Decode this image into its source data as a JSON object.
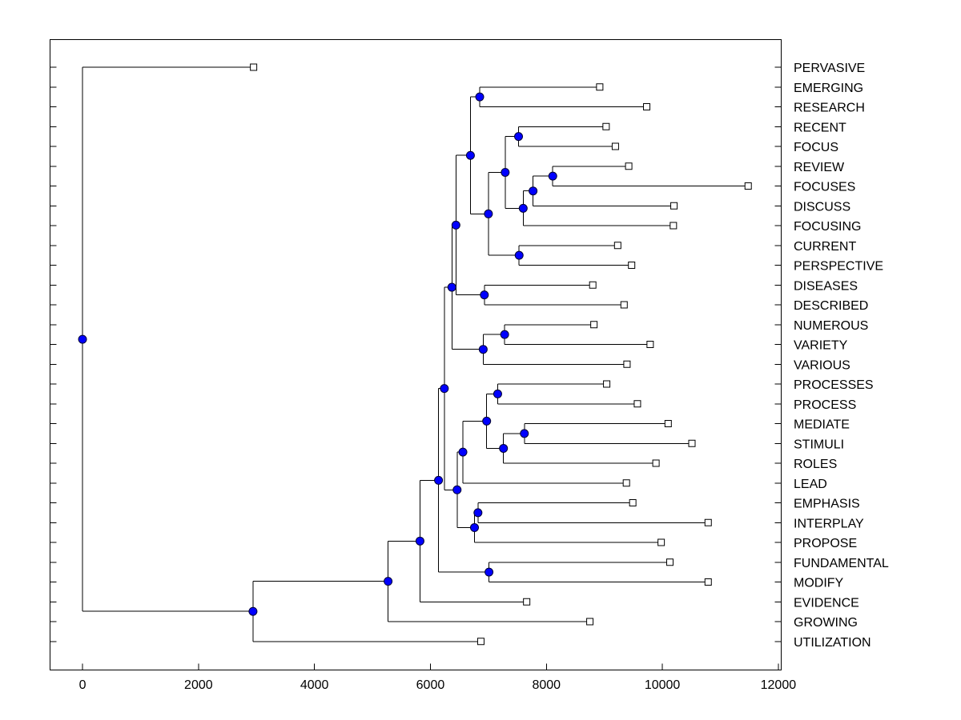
{
  "chart_data": {
    "type": "dendrogram",
    "title": "",
    "xlabel": "",
    "ylabel": "",
    "xlim": [
      -560,
      12050
    ],
    "x_ticks": [
      0,
      2000,
      4000,
      6000,
      8000,
      10000,
      12000
    ],
    "x_tick_labels": [
      "0",
      "2000",
      "4000",
      "6000",
      "8000",
      "10000",
      "12000"
    ],
    "grid": false,
    "colors": {
      "node": "#0000ff",
      "leaf": "#ffffff",
      "line": "#000000"
    },
    "leaves": [
      {
        "label": "PERVASIVE",
        "value": 2950
      },
      {
        "label": "EMERGING",
        "value": 8920
      },
      {
        "label": "RESEARCH",
        "value": 9730
      },
      {
        "label": "RECENT",
        "value": 9030
      },
      {
        "label": "FOCUS",
        "value": 9190
      },
      {
        "label": "REVIEW",
        "value": 9420
      },
      {
        "label": "FOCUSES",
        "value": 11480
      },
      {
        "label": "DISCUSS",
        "value": 10200
      },
      {
        "label": "FOCUSING",
        "value": 10190
      },
      {
        "label": "CURRENT",
        "value": 9230
      },
      {
        "label": "PERSPECTIVE",
        "value": 9470
      },
      {
        "label": "DISEASES",
        "value": 8800
      },
      {
        "label": "DESCRIBED",
        "value": 9340
      },
      {
        "label": "NUMEROUS",
        "value": 8820
      },
      {
        "label": "VARIETY",
        "value": 9790
      },
      {
        "label": "VARIOUS",
        "value": 9390
      },
      {
        "label": "PROCESSES",
        "value": 9040
      },
      {
        "label": "PROCESS",
        "value": 9570
      },
      {
        "label": "MEDIATE",
        "value": 10100
      },
      {
        "label": "STIMULI",
        "value": 10510
      },
      {
        "label": "ROLES",
        "value": 9890
      },
      {
        "label": "LEAD",
        "value": 9380
      },
      {
        "label": "EMPHASIS",
        "value": 9490
      },
      {
        "label": "INTERPLAY",
        "value": 10790
      },
      {
        "label": "PROPOSE",
        "value": 9980
      },
      {
        "label": "FUNDAMENTAL",
        "value": 10130
      },
      {
        "label": "MODIFY",
        "value": 10790
      },
      {
        "label": "EVIDENCE",
        "value": 7660
      },
      {
        "label": "GROWING",
        "value": 8750
      },
      {
        "label": "UTILIZATION",
        "value": 6870
      }
    ],
    "merges": [
      {
        "id": "n1",
        "value": 6850,
        "children": [
          "EMERGING",
          "RESEARCH"
        ]
      },
      {
        "id": "n2",
        "value": 7520,
        "children": [
          "RECENT",
          "FOCUS"
        ]
      },
      {
        "id": "n3",
        "value": 8110,
        "children": [
          "REVIEW",
          "FOCUSES"
        ]
      },
      {
        "id": "n4",
        "value": 7770,
        "children": [
          "n3",
          "DISCUSS"
        ]
      },
      {
        "id": "n5",
        "value": 7600,
        "children": [
          "n4",
          "FOCUSING"
        ]
      },
      {
        "id": "n6",
        "value": 7290,
        "children": [
          "n2",
          "n5"
        ]
      },
      {
        "id": "n7",
        "value": 7530,
        "children": [
          "CURRENT",
          "PERSPECTIVE"
        ]
      },
      {
        "id": "n8",
        "value": 7000,
        "children": [
          "n6",
          "n7"
        ]
      },
      {
        "id": "n9",
        "value": 6690,
        "children": [
          "n1",
          "n8"
        ]
      },
      {
        "id": "n10",
        "value": 6930,
        "children": [
          "DISEASES",
          "DESCRIBED"
        ]
      },
      {
        "id": "n11",
        "value": 6440,
        "children": [
          "n9",
          "n10"
        ]
      },
      {
        "id": "n12",
        "value": 7280,
        "children": [
          "NUMEROUS",
          "VARIETY"
        ]
      },
      {
        "id": "n13",
        "value": 6910,
        "children": [
          "n12",
          "VARIOUS"
        ]
      },
      {
        "id": "n14",
        "value": 6370,
        "children": [
          "n11",
          "n13"
        ]
      },
      {
        "id": "n15",
        "value": 7160,
        "children": [
          "PROCESSES",
          "PROCESS"
        ]
      },
      {
        "id": "n16",
        "value": 7620,
        "children": [
          "MEDIATE",
          "STIMULI"
        ]
      },
      {
        "id": "n17",
        "value": 7260,
        "children": [
          "n16",
          "ROLES"
        ]
      },
      {
        "id": "n18",
        "value": 6970,
        "children": [
          "n15",
          "n17"
        ]
      },
      {
        "id": "n19",
        "value": 6560,
        "children": [
          "n18",
          "LEAD"
        ]
      },
      {
        "id": "n20",
        "value": 6820,
        "children": [
          "EMPHASIS",
          "INTERPLAY"
        ]
      },
      {
        "id": "n21",
        "value": 6760,
        "children": [
          "n20",
          "PROPOSE"
        ]
      },
      {
        "id": "n22",
        "value": 6460,
        "children": [
          "n19",
          "n21"
        ]
      },
      {
        "id": "n23",
        "value": 6240,
        "children": [
          "n14",
          "n22"
        ]
      },
      {
        "id": "n24",
        "value": 7010,
        "children": [
          "FUNDAMENTAL",
          "MODIFY"
        ]
      },
      {
        "id": "n25",
        "value": 6140,
        "children": [
          "n23",
          "n24"
        ]
      },
      {
        "id": "n26",
        "value": 5820,
        "children": [
          "n25",
          "EVIDENCE"
        ]
      },
      {
        "id": "n27",
        "value": 5270,
        "children": [
          "n26",
          "GROWING"
        ]
      },
      {
        "id": "n28",
        "value": 2940,
        "children": [
          "n27",
          "UTILIZATION"
        ]
      },
      {
        "id": "n29",
        "value": 0,
        "children": [
          "PERVASIVE",
          "n28"
        ]
      }
    ]
  }
}
